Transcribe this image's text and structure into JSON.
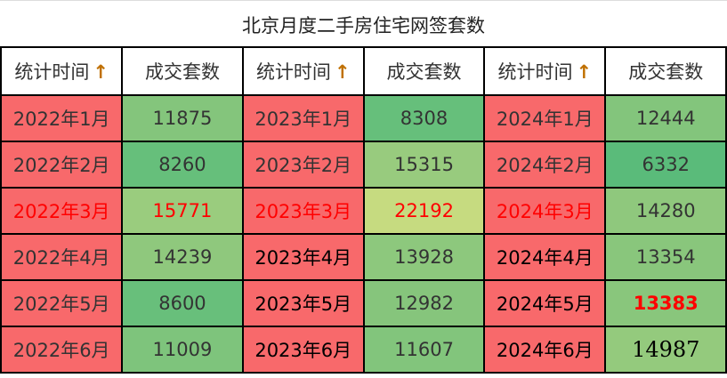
{
  "title": "北京月度二手房住宅网签套数",
  "headers": {
    "time": "统计时间",
    "count": "成交套数",
    "sort_icon": "arrow-up-icon"
  },
  "colors": {
    "date_bg": "#F8696B",
    "highlight_text": "#FF0000"
  },
  "rows": [
    [
      {
        "d": "2022年1月",
        "n": "11875",
        "c": "#84C57C"
      },
      {
        "d": "2023年1月",
        "n": "8308",
        "c": "#66BF7B"
      },
      {
        "d": "2024年1月",
        "n": "12444",
        "c": "#83C57C"
      }
    ],
    [
      {
        "d": "2022年2月",
        "n": "8260",
        "c": "#66BF7B"
      },
      {
        "d": "2023年2月",
        "n": "15315",
        "c": "#98CB7E"
      },
      {
        "d": "2024年2月",
        "n": "6332",
        "c": "#5ABB7A"
      }
    ],
    [
      {
        "d": "2022年3月",
        "n": "15771",
        "c": "#9ACC7E"
      },
      {
        "d": "2023年3月",
        "n": "22192",
        "c": "#C6DB80"
      },
      {
        "d": "2024年3月",
        "n": "14280",
        "c": "#8FC87D"
      }
    ],
    [
      {
        "d": "2022年4月",
        "n": "14239",
        "c": "#8FC87D"
      },
      {
        "d": "2023年4月",
        "n": "13928",
        "c": "#8DC87D"
      },
      {
        "d": "2024年4月",
        "n": "13354",
        "c": "#89C67C"
      }
    ],
    [
      {
        "d": "2022年5月",
        "n": "8600",
        "c": "#68BF7B"
      },
      {
        "d": "2023年5月",
        "n": "12982",
        "c": "#86C57C"
      },
      {
        "d": "2024年5月",
        "n": "13383",
        "c": "#89C67C"
      }
    ],
    [
      {
        "d": "2022年6月",
        "n": "11009",
        "c": "#7EC47C"
      },
      {
        "d": "2023年6月",
        "n": "11607",
        "c": "#82C57C"
      },
      {
        "d": "2024年6月",
        "n": "14987",
        "c": "#94CA7D"
      }
    ]
  ]
}
